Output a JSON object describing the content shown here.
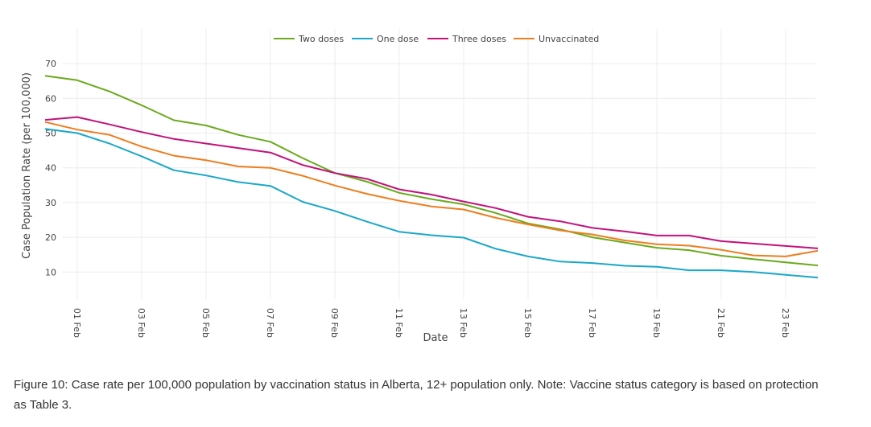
{
  "caption": "Figure 10: Case rate per 100,000 population by vaccination status in Alberta, 12+ population only. Note: Vaccine status category is based on protection as Table 3.",
  "chart_data": {
    "type": "line",
    "xlabel": "Date",
    "ylabel": "Case Population Rate (per 100,000)",
    "ylim": [
      0,
      73
    ],
    "y_ticks": [
      10,
      20,
      30,
      40,
      50,
      60,
      70
    ],
    "x_tick_labels": [
      "01 Feb",
      "03 Feb",
      "05 Feb",
      "07 Feb",
      "09 Feb",
      "11 Feb",
      "13 Feb",
      "15 Feb",
      "17 Feb",
      "19 Feb",
      "21 Feb",
      "23 Feb"
    ],
    "x": [
      "31 Jan",
      "01 Feb",
      "02 Feb",
      "03 Feb",
      "04 Feb",
      "05 Feb",
      "06 Feb",
      "07 Feb",
      "08 Feb",
      "09 Feb",
      "10 Feb",
      "11 Feb",
      "12 Feb",
      "13 Feb",
      "14 Feb",
      "15 Feb",
      "16 Feb",
      "17 Feb",
      "18 Feb",
      "19 Feb",
      "20 Feb",
      "21 Feb",
      "22 Feb",
      "23 Feb",
      "24 Feb"
    ],
    "legend_position": "top-center",
    "grid": true,
    "series": [
      {
        "name": "Two doses",
        "color": "#6aaa1c",
        "values": [
          66.5,
          65.2,
          62.0,
          58.0,
          53.7,
          52.2,
          49.5,
          47.5,
          42.8,
          38.5,
          36.0,
          32.8,
          31.0,
          29.5,
          27.0,
          24.0,
          22.3,
          20.0,
          18.5,
          17.0,
          16.3,
          14.7,
          13.7,
          12.8,
          11.9
        ]
      },
      {
        "name": "One dose",
        "color": "#1aa8c8",
        "values": [
          51.2,
          50.0,
          47.0,
          43.3,
          39.3,
          37.8,
          35.9,
          34.8,
          30.2,
          27.6,
          24.5,
          21.6,
          20.6,
          19.9,
          16.7,
          14.5,
          13.0,
          12.6,
          11.8,
          11.5,
          10.5,
          10.5,
          10.0,
          9.2,
          8.4
        ]
      },
      {
        "name": "Three doses",
        "color": "#c2127a",
        "values": [
          53.8,
          54.6,
          52.5,
          50.3,
          48.3,
          47.0,
          45.7,
          44.4,
          40.8,
          38.5,
          36.8,
          33.8,
          32.3,
          30.3,
          28.4,
          25.9,
          24.6,
          22.7,
          21.7,
          20.5,
          20.5,
          18.9,
          18.2,
          17.5,
          16.8
        ]
      },
      {
        "name": "Unvaccinated",
        "color": "#ee7d1e",
        "values": [
          53.2,
          51.0,
          49.5,
          46.1,
          43.5,
          42.2,
          40.4,
          40.0,
          37.7,
          34.9,
          32.5,
          30.5,
          28.9,
          28.0,
          25.6,
          23.7,
          22.0,
          20.8,
          19.1,
          18.0,
          17.6,
          16.4,
          14.8,
          14.5,
          16.1
        ]
      }
    ]
  }
}
